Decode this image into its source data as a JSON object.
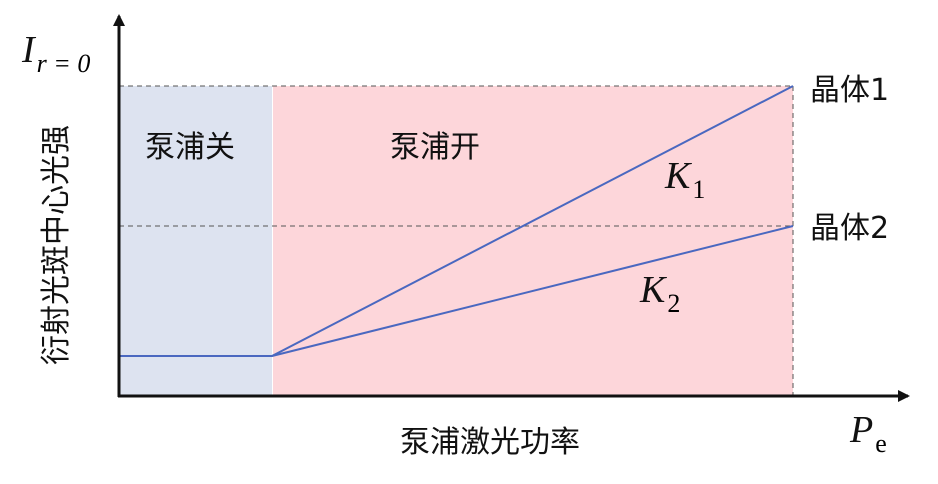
{
  "y_axis": {
    "symbol": "I",
    "subscript": "r = 0",
    "label": "衍射光斑中心光强"
  },
  "x_axis": {
    "symbol": "P",
    "subscript": "e",
    "label": "泵浦激光功率"
  },
  "regions": [
    {
      "label": "泵浦关"
    },
    {
      "label": "泵浦开"
    }
  ],
  "lines": [
    {
      "label": "晶体1",
      "slope": {
        "symbol": "K",
        "subscript": "1"
      }
    },
    {
      "label": "晶体2",
      "slope": {
        "symbol": "K",
        "subscript": "2"
      }
    }
  ]
}
